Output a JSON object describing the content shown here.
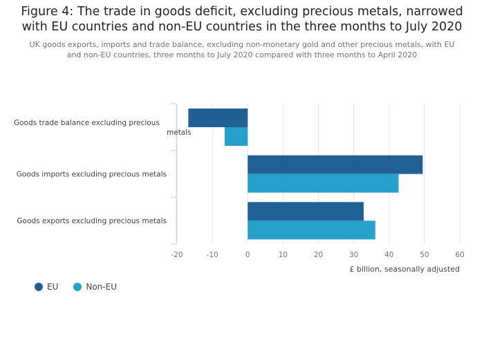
{
  "title_lines": [
    "Figure 4: The trade in goods deficit, excluding precious metals, narrowed",
    "with EU countries and non-EU countries in the three months to July 2020"
  ],
  "subtitle_lines": [
    "UK goods exports, imports and trade balance, excluding non-monetary gold and other precious metals, with EU",
    "and non-EU countries, three months to July 2020 compared with three months to April 2020"
  ],
  "colors": {
    "EU": "#206095",
    "Non-EU": "#27a0cc",
    "grid": "#e6e6e6",
    "axis": "#cccccc"
  },
  "chart_data": {
    "type": "bar",
    "orientation": "horizontal",
    "categories": [
      [
        "Goods trade balance excluding precious",
        "metals"
      ],
      [
        "Goods imports excluding precious metals"
      ],
      [
        "Goods exports excluding precious metals"
      ]
    ],
    "series": [
      {
        "name": "EU",
        "values": [
          -16.8,
          49.5,
          32.8
        ]
      },
      {
        "name": "Non-EU",
        "values": [
          -6.5,
          42.7,
          36.1
        ]
      }
    ],
    "xlim": [
      -20,
      60
    ],
    "xticks": [
      -20,
      -10,
      0,
      10,
      20,
      30,
      40,
      50,
      60
    ],
    "xlabel": "£ billion, seasonally adjusted",
    "grid": true,
    "legend_position": "bottom-left"
  }
}
